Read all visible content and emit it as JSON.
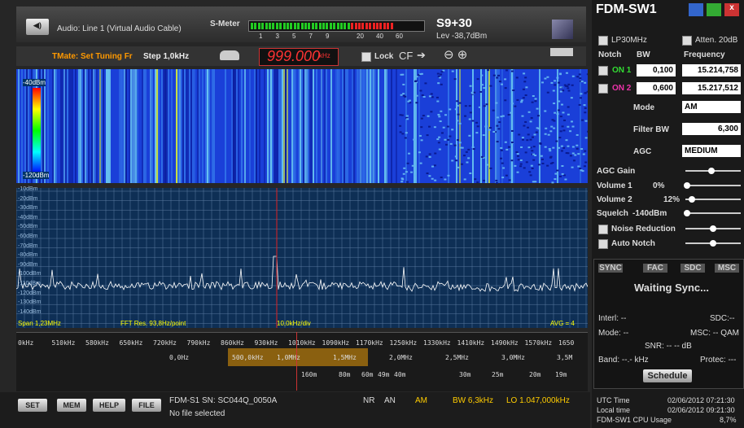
{
  "top": {
    "audio": "Audio: Line 1 (Virtual Audio Cable)",
    "smeter_label": "S-Meter",
    "smeter_scale": [
      "1",
      "3",
      "5",
      "7",
      "9",
      "20",
      "40",
      "60"
    ],
    "signal": "S9+30",
    "level": "Lev -38,7dBm"
  },
  "tuning": {
    "tmate": "TMate: Set Tuning Fr",
    "step": "Step 1,0kHz",
    "frequency": "999.000",
    "unit": "kHz",
    "lock": "Lock",
    "cf": "CF"
  },
  "waterfall": {
    "top_label": "-40dBm",
    "bottom_label": "-120dBm"
  },
  "spectrum": {
    "db_labels": [
      "-10dBm",
      "-20dBm",
      "-30dBm",
      "-40dBm",
      "-50dBm",
      "-60dBm",
      "-70dBm",
      "-80dBm",
      "-90dBm",
      "-100dBm",
      "-110dBm",
      "-120dBm",
      "-130dBm",
      "-140dBm"
    ],
    "span": "Span 1,23MHz",
    "fft": "FFT Res. 93,8Hz/point",
    "div": "10,0kHz/div",
    "avg": "AVG = 4"
  },
  "scale": {
    "khz": [
      "0kHz",
      "510kHz",
      "580kHz",
      "650kHz",
      "720kHz",
      "790kHz",
      "860kHz",
      "930kHz",
      "1010kHz",
      "1090kHz",
      "1170kHz",
      "1250kHz",
      "1330kHz",
      "1410kHz",
      "1490kHz",
      "1570kHz",
      "1650"
    ],
    "mhz": [
      "0,0Hz",
      "500,0kHz",
      "1,0MHz",
      "1,5MHz",
      "2,0MHz",
      "2,5MHz",
      "3,0MHz",
      "3,5M"
    ],
    "meters": [
      "160m",
      "80m",
      "60m",
      "49m",
      "40m",
      "30m",
      "25m",
      "20m",
      "19m"
    ]
  },
  "bottom": {
    "buttons": [
      "SET",
      "MEM",
      "HELP",
      "FILE"
    ],
    "device": "FDM-S1 SN: SC044Q_0050A",
    "file": "No file selected",
    "nr": "NR",
    "an": "AN",
    "mode": "AM",
    "bw": "BW 6,3kHz",
    "lo": "LO  1.047,000kHz"
  },
  "panel": {
    "title": "FDM-SW1",
    "lp": "LP30MHz",
    "atten": "Atten. 20dB",
    "notch": "Notch",
    "bw": "BW",
    "frequency": "Frequency",
    "notches": [
      {
        "label": "ON 1",
        "bw": "0,100",
        "freq": "15.214,758"
      },
      {
        "label": "ON 2",
        "bw": "0,600",
        "freq": "15.217,512"
      }
    ],
    "mode_label": "Mode",
    "mode": "AM",
    "filter_label": "Filter BW",
    "filter": "6,300",
    "agc_label": "AGC",
    "agc": "MEDIUM",
    "agc_gain": "AGC Gain",
    "volume1": "Volume 1",
    "volume1_val": "0%",
    "volume2": "Volume 2",
    "volume2_val": "12%",
    "squelch": "Squelch",
    "squelch_val": "-140dBm",
    "noise": "Noise Reduction",
    "auto_notch": "Auto Notch"
  },
  "drm": {
    "tabs": [
      "SYNC",
      "FAC",
      "SDC",
      "MSC"
    ],
    "status": "Waiting Sync...",
    "interl": "Interl: --",
    "sdc": "SDC:--",
    "mode": "Mode: --",
    "msc": "MSC: -- QAM",
    "snr": "SNR: -- -- dB",
    "band": "Band: --.- kHz",
    "protec": "Protec: ---",
    "schedule": "Schedule"
  },
  "status": {
    "utc_label": "UTC Time",
    "utc": "02/06/2012 07:21:30",
    "local_label": "Local time",
    "local": "02/06/2012 09:21:30",
    "cpu_label": "FDM-SW1 CPU Usage",
    "cpu": "8,7%"
  }
}
